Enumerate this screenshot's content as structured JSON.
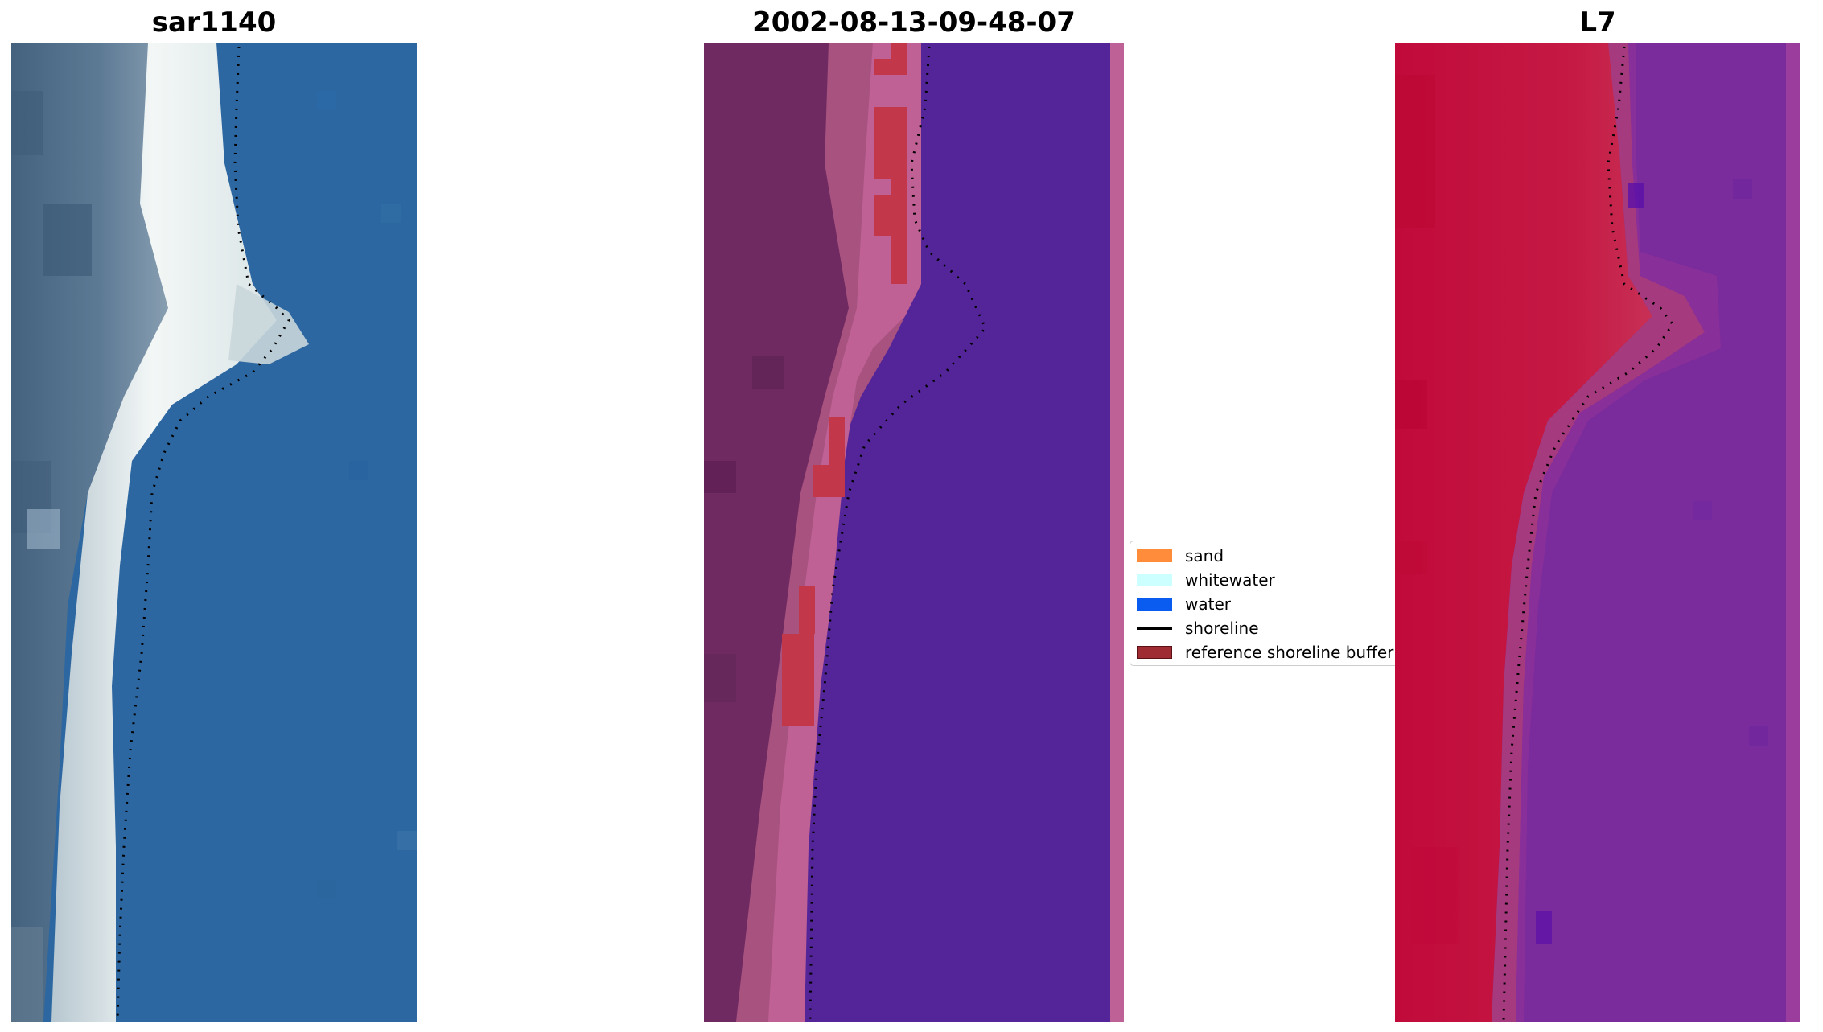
{
  "panels": [
    {
      "title": "sar1140",
      "kind": "rgb-image"
    },
    {
      "title": "2002-08-13-09-48-07",
      "kind": "classified-image"
    },
    {
      "title": "L7",
      "kind": "mndwi-image"
    }
  ],
  "legend": {
    "items": [
      {
        "label": "sand",
        "color": "#ff8c3a",
        "type": "patch"
      },
      {
        "label": "whitewater",
        "color": "#ccffff",
        "type": "patch"
      },
      {
        "label": "water",
        "color": "#0a5cf0",
        "type": "patch"
      },
      {
        "label": "shoreline",
        "color": "#000000",
        "type": "line"
      },
      {
        "label": "reference shoreline buffer",
        "color": "#a02c33",
        "type": "patch"
      }
    ]
  },
  "colors": {
    "rgb_water": "#2c66a0",
    "rgb_beach": "#eef3f2",
    "rgb_land": "#4e7090",
    "class_water": "#532597",
    "class_land": "#6e2a60",
    "class_land_light": "#a5507f",
    "class_buffer": "#c2374a",
    "mndwi_land": "#c41340",
    "mndwi_water": "#7a2a9c",
    "shoreline": "#000000"
  }
}
